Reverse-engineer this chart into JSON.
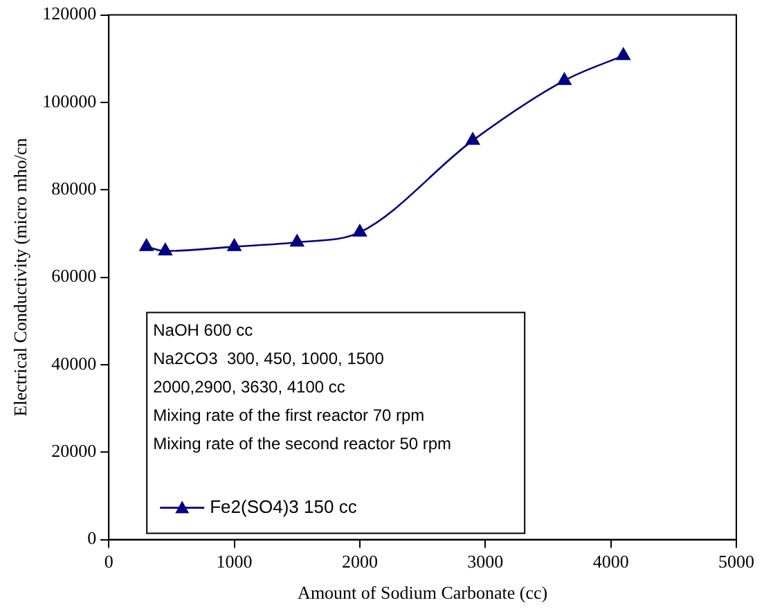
{
  "chart_data": {
    "type": "line",
    "xlabel": "Amount of Sodium Carbonate (cc)",
    "ylabel": "Electrical Conductivity (micro mho/cn",
    "x": [
      300,
      450,
      1000,
      1500,
      2000,
      2900,
      3630,
      4100
    ],
    "series": [
      {
        "name": "Fe2(SO4)3 150 cc",
        "color": "#000080",
        "values": [
          67000,
          66000,
          67000,
          68000,
          70300,
          91300,
          105000,
          110700
        ]
      }
    ],
    "xlim": [
      0,
      5000
    ],
    "xticks": [
      0,
      1000,
      2000,
      3000,
      4000,
      5000
    ],
    "ylim": [
      0,
      120000
    ],
    "yticks": [
      0,
      20000,
      40000,
      60000,
      80000,
      100000,
      120000
    ],
    "grid": false,
    "legend": "bottom left",
    "marker": "triangle",
    "line_style": "solid",
    "annotations": [
      "NaOH 600 cc",
      "Na2CO3  300, 450, 1000, 1500",
      "2000,2900, 3630, 4100 cc",
      "Mixing rate of the first reactor 70 rpm",
      "Mixing rate of the second reactor 50 rpm"
    ]
  }
}
